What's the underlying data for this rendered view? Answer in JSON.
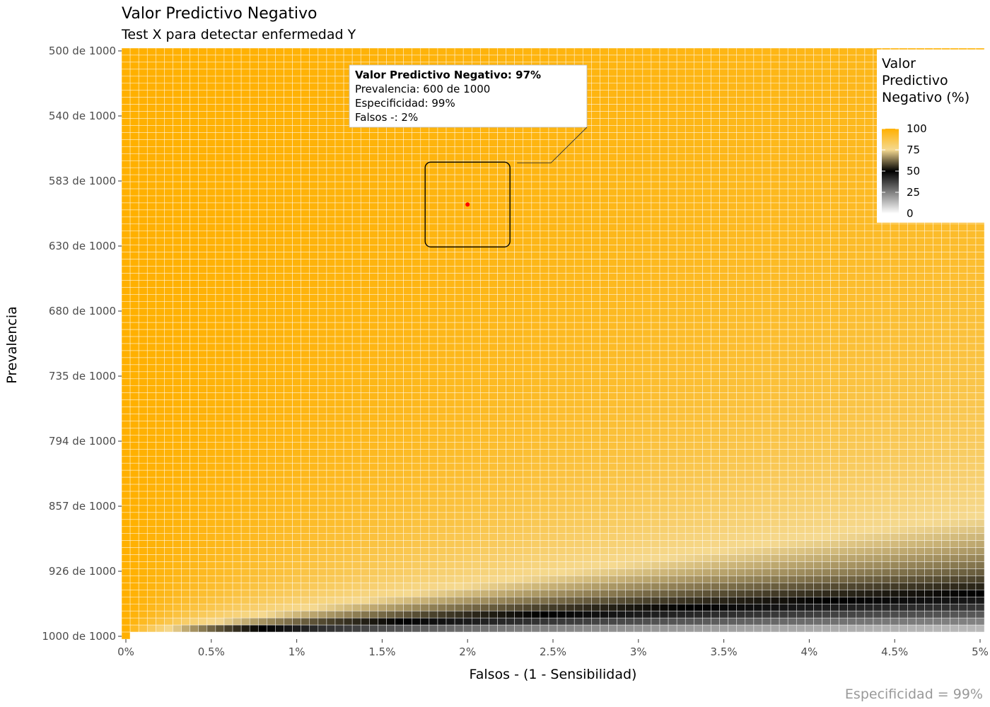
{
  "chart_data": {
    "type": "heatmap",
    "title": "Valor Predictivo Negativo",
    "subtitle": "Test X para detectar enfermedad Y",
    "xlabel": "Falsos - (1 - Sensibilidad)",
    "ylabel": "Prevalencia",
    "caption": "Especificidad = 99%",
    "specificity": 0.99,
    "x_range": [
      0,
      0.05
    ],
    "y_range": [
      500,
      1000
    ],
    "x_ticks": [
      {
        "value": 0,
        "label": "0%"
      },
      {
        "value": 0.005,
        "label": "0.5%"
      },
      {
        "value": 0.01,
        "label": "1%"
      },
      {
        "value": 0.015,
        "label": "1.5%"
      },
      {
        "value": 0.02,
        "label": "2%"
      },
      {
        "value": 0.025,
        "label": "2.5%"
      },
      {
        "value": 0.03,
        "label": "3%"
      },
      {
        "value": 0.035,
        "label": "3.5%"
      },
      {
        "value": 0.04,
        "label": "4%"
      },
      {
        "value": 0.045,
        "label": "4.5%"
      },
      {
        "value": 0.05,
        "label": "5%"
      }
    ],
    "y_ticks": [
      {
        "value": 500,
        "label": "500 de 1000"
      },
      {
        "value": 540,
        "label": "540 de 1000"
      },
      {
        "value": 583,
        "label": "583 de 1000"
      },
      {
        "value": 630,
        "label": "630 de 1000"
      },
      {
        "value": 680,
        "label": "680 de 1000"
      },
      {
        "value": 735,
        "label": "735 de 1000"
      },
      {
        "value": 794,
        "label": "794 de 1000"
      },
      {
        "value": 857,
        "label": "857 de 1000"
      },
      {
        "value": 926,
        "label": "926 de 1000"
      },
      {
        "value": 1000,
        "label": "1000 de 1000"
      }
    ],
    "legend": {
      "title_lines": [
        "Valor",
        "Predictivo",
        "Negativo (%)"
      ],
      "position": "top-right",
      "ticks": [
        100,
        75,
        50,
        25,
        0
      ],
      "gradient": [
        {
          "value": 100,
          "color": "#FFB000"
        },
        {
          "value": 75,
          "color": "#F5D990"
        },
        {
          "value": 50,
          "color": "#000000"
        },
        {
          "value": 25,
          "color": "#808080"
        },
        {
          "value": 0,
          "color": "#FFFFFF"
        }
      ]
    },
    "highlight": {
      "x": 0.02,
      "prevalence": 600,
      "npv_percent": 97,
      "tooltip_lines": [
        "Valor Predictivo Negativo: 97%",
        "Prevalencia: 600 de 1000",
        "Especificidad: 99%",
        "Falsos -: 2%"
      ],
      "point_color": "#FF0000"
    }
  }
}
